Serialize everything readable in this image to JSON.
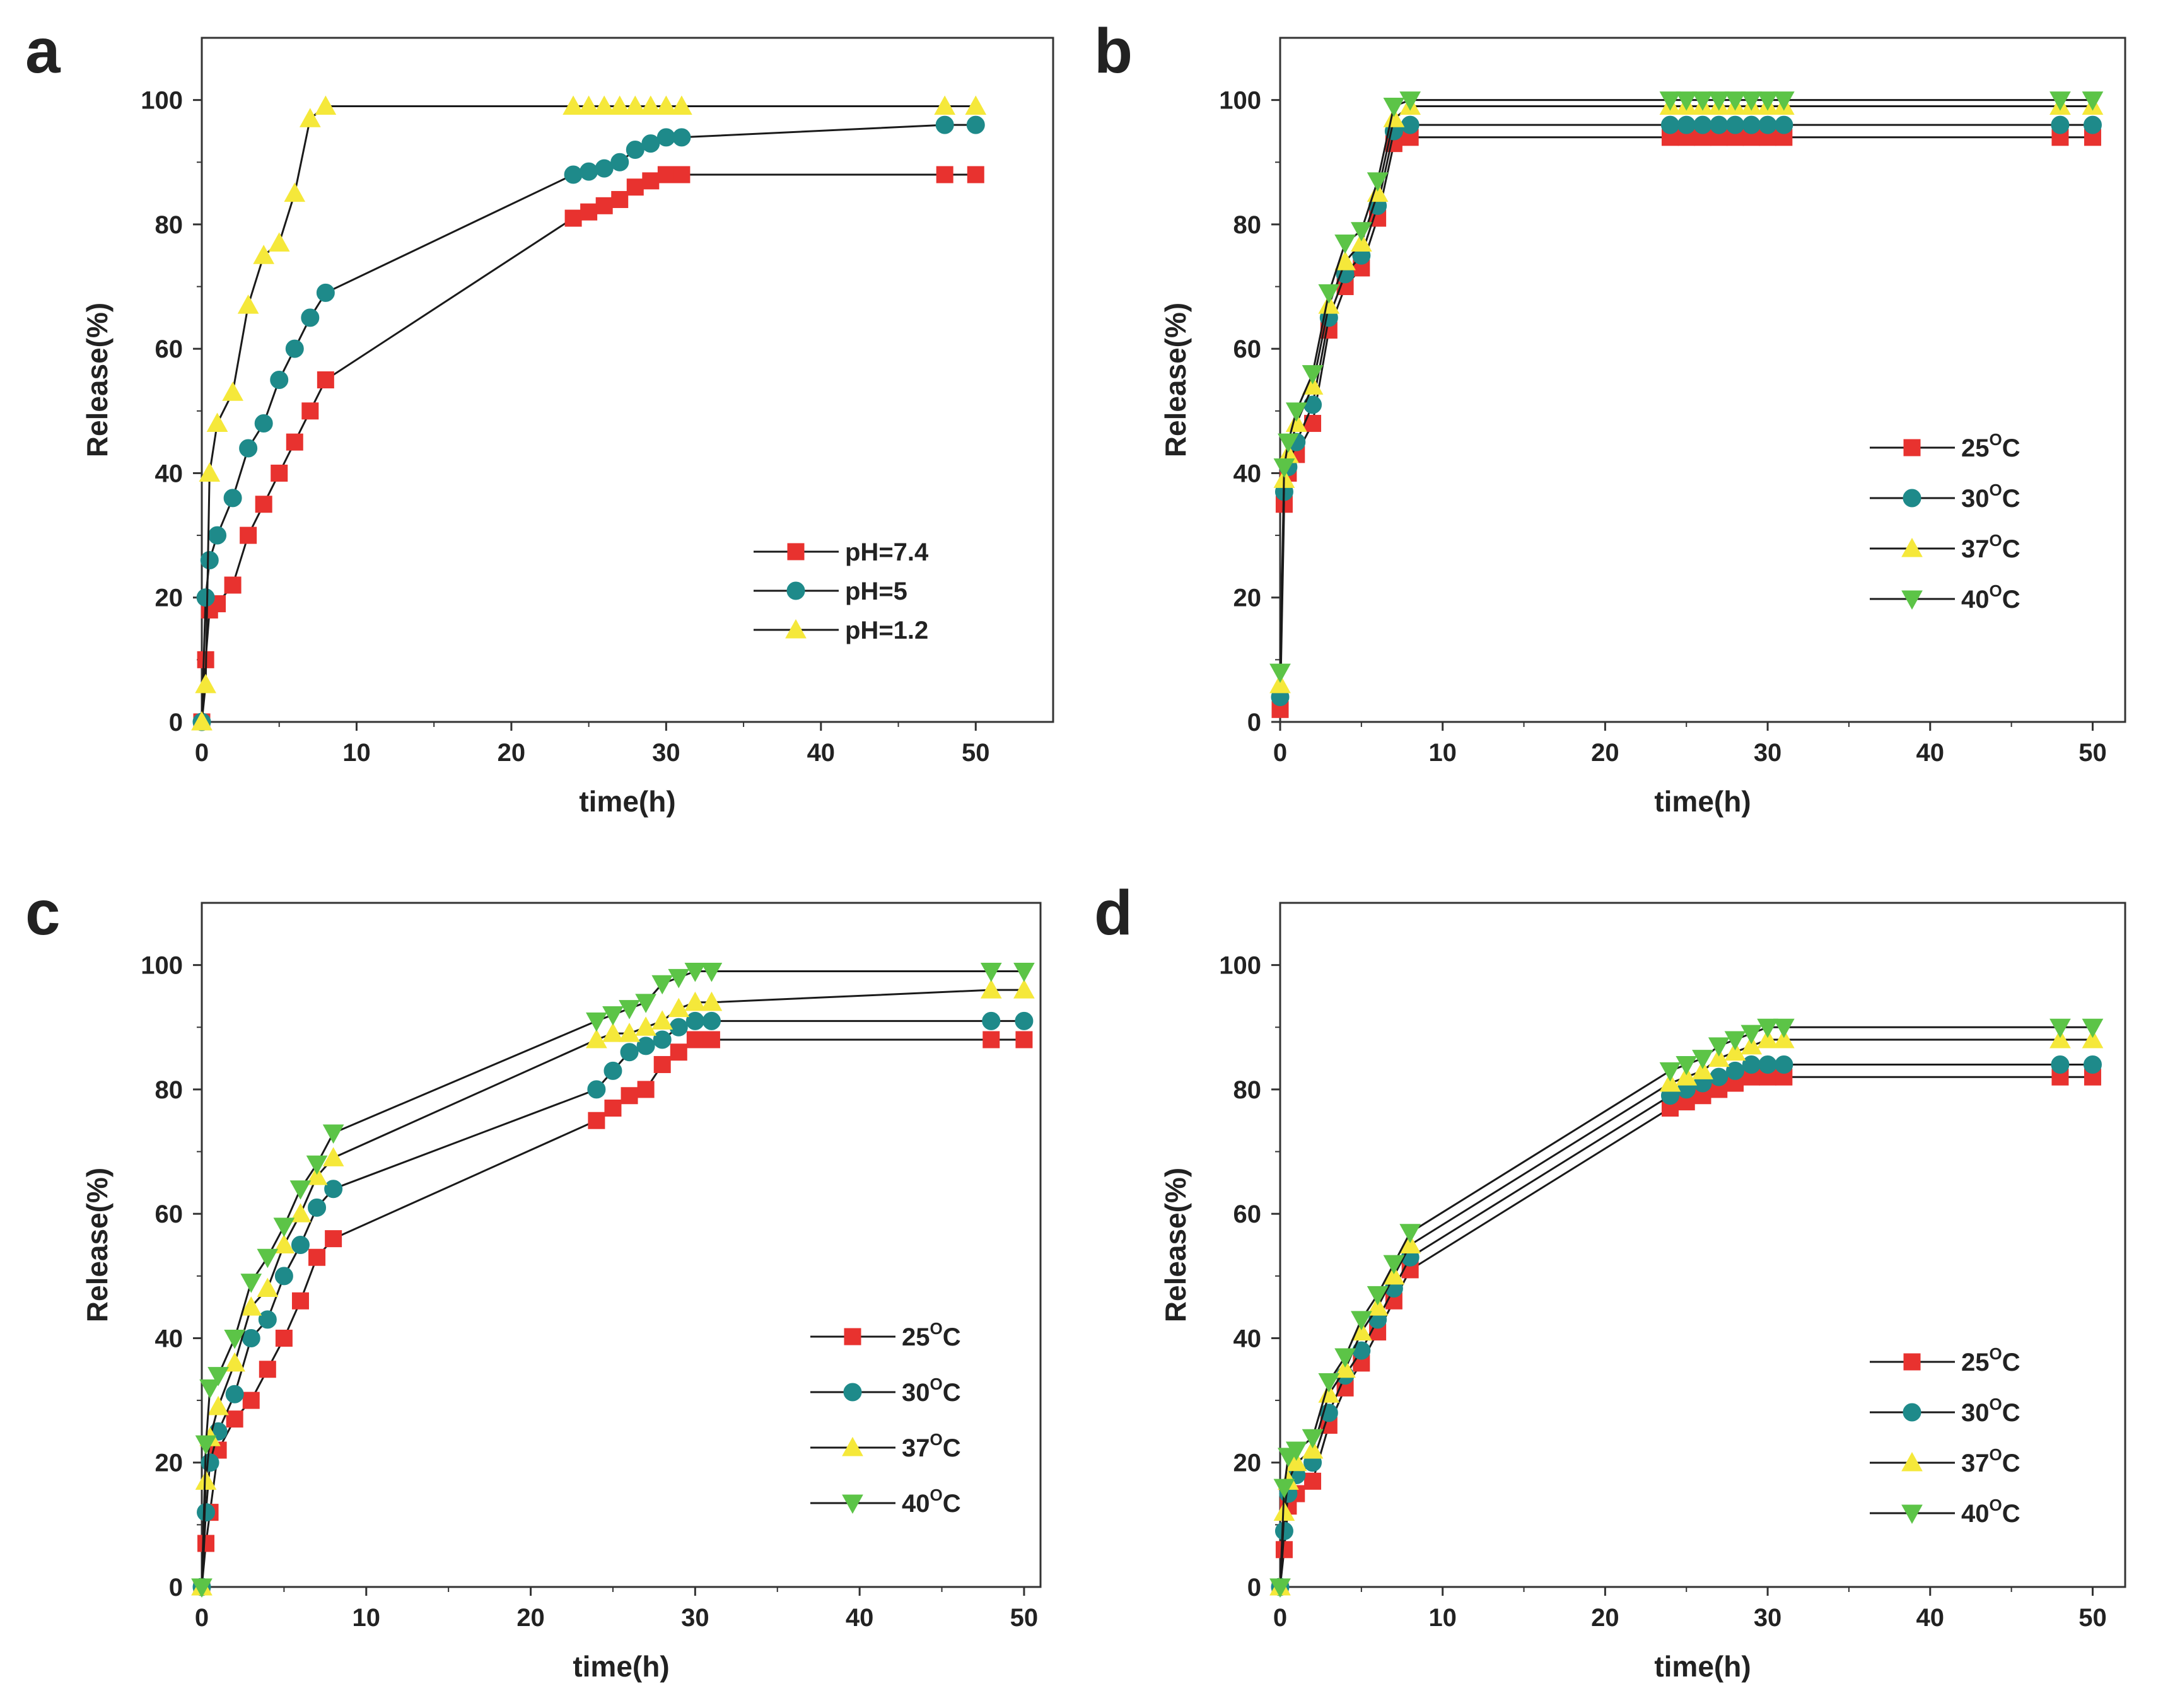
{
  "chart_data": [
    {
      "panel": "a",
      "type": "line",
      "xlabel": "time(h)",
      "ylabel": "Release(%)",
      "xlim": [
        0,
        55
      ],
      "ylim": [
        0,
        110
      ],
      "xticks": [
        0,
        10,
        20,
        30,
        40,
        50
      ],
      "yticks": [
        0,
        20,
        40,
        60,
        80,
        100
      ],
      "legend_position": "lower-right",
      "series": [
        {
          "name": "pH=7.4",
          "sup": "",
          "marker": "square",
          "color": "#e8322f",
          "x": [
            0,
            0.25,
            0.5,
            1,
            2,
            3,
            4,
            5,
            6,
            7,
            8,
            24,
            25,
            26,
            27,
            28,
            29,
            30,
            31,
            48,
            50
          ],
          "y": [
            0,
            10,
            18,
            19,
            22,
            30,
            35,
            40,
            45,
            50,
            55,
            81,
            82,
            83,
            84,
            86,
            87,
            88,
            88,
            88,
            88
          ]
        },
        {
          "name": "pH=5",
          "sup": "",
          "marker": "circle",
          "color": "#1e8a8a",
          "x": [
            0,
            0.25,
            0.5,
            1,
            2,
            3,
            4,
            5,
            6,
            7,
            8,
            24,
            25,
            26,
            27,
            28,
            29,
            30,
            31,
            48,
            50
          ],
          "y": [
            0,
            20,
            26,
            30,
            36,
            44,
            48,
            55,
            60,
            65,
            69,
            88,
            88.5,
            89,
            90,
            92,
            93,
            94,
            94,
            96,
            96
          ]
        },
        {
          "name": "pH=1.2",
          "sup": "",
          "marker": "triangle-up",
          "color": "#f5e83a",
          "x": [
            0,
            0.25,
            0.5,
            1,
            2,
            3,
            4,
            5,
            6,
            7,
            8,
            24,
            25,
            26,
            27,
            28,
            29,
            30,
            31,
            48,
            50
          ],
          "y": [
            0,
            6,
            40,
            48,
            53,
            67,
            75,
            77,
            85,
            97,
            99,
            99,
            99,
            99,
            99,
            99,
            99,
            99,
            99,
            99,
            99
          ]
        }
      ]
    },
    {
      "panel": "b",
      "type": "line",
      "xlabel": "time(h)",
      "ylabel": "Release(%)",
      "xlim": [
        0,
        52
      ],
      "ylim": [
        0,
        110
      ],
      "xticks": [
        0,
        10,
        20,
        30,
        40,
        50
      ],
      "yticks": [
        0,
        20,
        40,
        60,
        80,
        100
      ],
      "legend_position": "middle-right",
      "series": [
        {
          "name": "25",
          "sup": "O",
          "unit": "C",
          "marker": "square",
          "color": "#e8322f",
          "x": [
            0,
            0.25,
            0.5,
            1,
            2,
            3,
            4,
            5,
            6,
            7,
            8,
            24,
            25,
            26,
            27,
            28,
            29,
            30,
            31,
            48,
            50
          ],
          "y": [
            2,
            35,
            40,
            43,
            48,
            63,
            70,
            73,
            81,
            93,
            94,
            94,
            94,
            94,
            94,
            94,
            94,
            94,
            94,
            94,
            94
          ]
        },
        {
          "name": "30",
          "sup": "O",
          "unit": "C",
          "marker": "circle",
          "color": "#1e8a8a",
          "x": [
            0,
            0.25,
            0.5,
            1,
            2,
            3,
            4,
            5,
            6,
            7,
            8,
            24,
            25,
            26,
            27,
            28,
            29,
            30,
            31,
            48,
            50
          ],
          "y": [
            4,
            37,
            41,
            45,
            51,
            65,
            72,
            75,
            83,
            95,
            96,
            96,
            96,
            96,
            96,
            96,
            96,
            96,
            96,
            96,
            96
          ]
        },
        {
          "name": "37",
          "sup": "O",
          "unit": "C",
          "marker": "triangle-up",
          "color": "#f5e83a",
          "x": [
            0,
            0.25,
            0.5,
            1,
            2,
            3,
            4,
            5,
            6,
            7,
            8,
            24,
            25,
            26,
            27,
            28,
            29,
            30,
            31,
            48,
            50
          ],
          "y": [
            6,
            39,
            43,
            48,
            54,
            67,
            74,
            77,
            85,
            97,
            99,
            99,
            99,
            99,
            99,
            99,
            99,
            99,
            99,
            99,
            99
          ]
        },
        {
          "name": "40",
          "sup": "O",
          "unit": "C",
          "marker": "triangle-down",
          "color": "#5cc447",
          "x": [
            0,
            0.25,
            0.5,
            1,
            2,
            3,
            4,
            5,
            6,
            7,
            8,
            24,
            25,
            26,
            27,
            28,
            29,
            30,
            31,
            48,
            50
          ],
          "y": [
            8,
            41,
            45,
            50,
            56,
            69,
            77,
            79,
            87,
            99,
            100,
            100,
            100,
            100,
            100,
            100,
            100,
            100,
            100,
            100,
            100
          ]
        }
      ]
    },
    {
      "panel": "c",
      "type": "line",
      "xlabel": "time(h)",
      "ylabel": "Release(%)",
      "xlim": [
        0,
        51
      ],
      "ylim": [
        0,
        110
      ],
      "xticks": [
        0,
        10,
        20,
        30,
        40,
        50
      ],
      "yticks": [
        0,
        20,
        40,
        60,
        80,
        100
      ],
      "legend_position": "lower-right",
      "series": [
        {
          "name": "25",
          "sup": "O",
          "unit": "C",
          "marker": "square",
          "color": "#e8322f",
          "x": [
            0,
            0.25,
            0.5,
            1,
            2,
            3,
            4,
            5,
            6,
            7,
            8,
            24,
            25,
            26,
            27,
            28,
            29,
            30,
            31,
            48,
            50
          ],
          "y": [
            0,
            7,
            12,
            22,
            27,
            30,
            35,
            40,
            46,
            53,
            56,
            75,
            77,
            79,
            80,
            84,
            86,
            88,
            88,
            88,
            88
          ]
        },
        {
          "name": "30",
          "sup": "O",
          "unit": "C",
          "marker": "circle",
          "color": "#1e8a8a",
          "x": [
            0,
            0.25,
            0.5,
            1,
            2,
            3,
            4,
            5,
            6,
            7,
            8,
            24,
            25,
            26,
            27,
            28,
            29,
            30,
            31,
            48,
            50
          ],
          "y": [
            0,
            12,
            20,
            25,
            31,
            40,
            43,
            50,
            55,
            61,
            64,
            80,
            83,
            86,
            87,
            88,
            90,
            91,
            91,
            91,
            91
          ]
        },
        {
          "name": "37",
          "sup": "O",
          "unit": "C",
          "marker": "triangle-up",
          "color": "#f5e83a",
          "x": [
            0,
            0.25,
            0.5,
            1,
            2,
            3,
            4,
            5,
            6,
            7,
            8,
            24,
            25,
            26,
            27,
            28,
            29,
            30,
            31,
            48,
            50
          ],
          "y": [
            0,
            17,
            24,
            29,
            36,
            45,
            48,
            55,
            60,
            66,
            69,
            88,
            89,
            89,
            90,
            91,
            93,
            94,
            94,
            96,
            96
          ]
        },
        {
          "name": "40",
          "sup": "O",
          "unit": "C",
          "marker": "triangle-down",
          "color": "#5cc447",
          "x": [
            0,
            0.25,
            0.5,
            1,
            2,
            3,
            4,
            5,
            6,
            7,
            8,
            24,
            25,
            26,
            27,
            28,
            29,
            30,
            31,
            48,
            50
          ],
          "y": [
            0,
            23,
            32,
            34,
            40,
            49,
            53,
            58,
            64,
            68,
            73,
            91,
            92,
            93,
            94,
            97,
            98,
            99,
            99,
            99,
            99
          ]
        }
      ]
    },
    {
      "panel": "d",
      "type": "line",
      "xlabel": "time(h)",
      "ylabel": "Release(%)",
      "xlim": [
        0,
        52
      ],
      "ylim": [
        0,
        110
      ],
      "xticks": [
        0,
        10,
        20,
        30,
        40,
        50
      ],
      "yticks": [
        0,
        20,
        40,
        60,
        80,
        100
      ],
      "legend_position": "lower-right",
      "series": [
        {
          "name": "25",
          "sup": "O",
          "unit": "C",
          "marker": "square",
          "color": "#e8322f",
          "x": [
            0,
            0.25,
            0.5,
            1,
            2,
            3,
            4,
            5,
            6,
            7,
            8,
            24,
            25,
            26,
            27,
            28,
            29,
            30,
            31,
            48,
            50
          ],
          "y": [
            0,
            6,
            13,
            15,
            17,
            26,
            32,
            36,
            41,
            46,
            51,
            77,
            78,
            79,
            80,
            81,
            82,
            82,
            82,
            82,
            82
          ]
        },
        {
          "name": "30",
          "sup": "O",
          "unit": "C",
          "marker": "circle",
          "color": "#1e8a8a",
          "x": [
            0,
            0.25,
            0.5,
            1,
            2,
            3,
            4,
            5,
            6,
            7,
            8,
            24,
            25,
            26,
            27,
            28,
            29,
            30,
            31,
            48,
            50
          ],
          "y": [
            0,
            9,
            15,
            18,
            20,
            28,
            34,
            38,
            43,
            48,
            53,
            79,
            80,
            81,
            82,
            83,
            84,
            84,
            84,
            84,
            84
          ]
        },
        {
          "name": "37",
          "sup": "O",
          "unit": "C",
          "marker": "triangle-up",
          "color": "#f5e83a",
          "x": [
            0,
            0.25,
            0.5,
            1,
            2,
            3,
            4,
            5,
            6,
            7,
            8,
            24,
            25,
            26,
            27,
            28,
            29,
            30,
            31,
            48,
            50
          ],
          "y": [
            0,
            12,
            17,
            20,
            22,
            31,
            35,
            41,
            45,
            50,
            55,
            81,
            82,
            83,
            85,
            86,
            87,
            88,
            88,
            88,
            88
          ]
        },
        {
          "name": "40",
          "sup": "O",
          "unit": "C",
          "marker": "triangle-down",
          "color": "#5cc447",
          "x": [
            0,
            0.25,
            0.5,
            1,
            2,
            3,
            4,
            5,
            6,
            7,
            8,
            24,
            25,
            26,
            27,
            28,
            29,
            30,
            31,
            48,
            50
          ],
          "y": [
            0,
            16,
            21,
            22,
            24,
            33,
            37,
            43,
            47,
            52,
            57,
            83,
            84,
            85,
            87,
            88,
            89,
            90,
            90,
            90,
            90
          ]
        }
      ]
    }
  ]
}
